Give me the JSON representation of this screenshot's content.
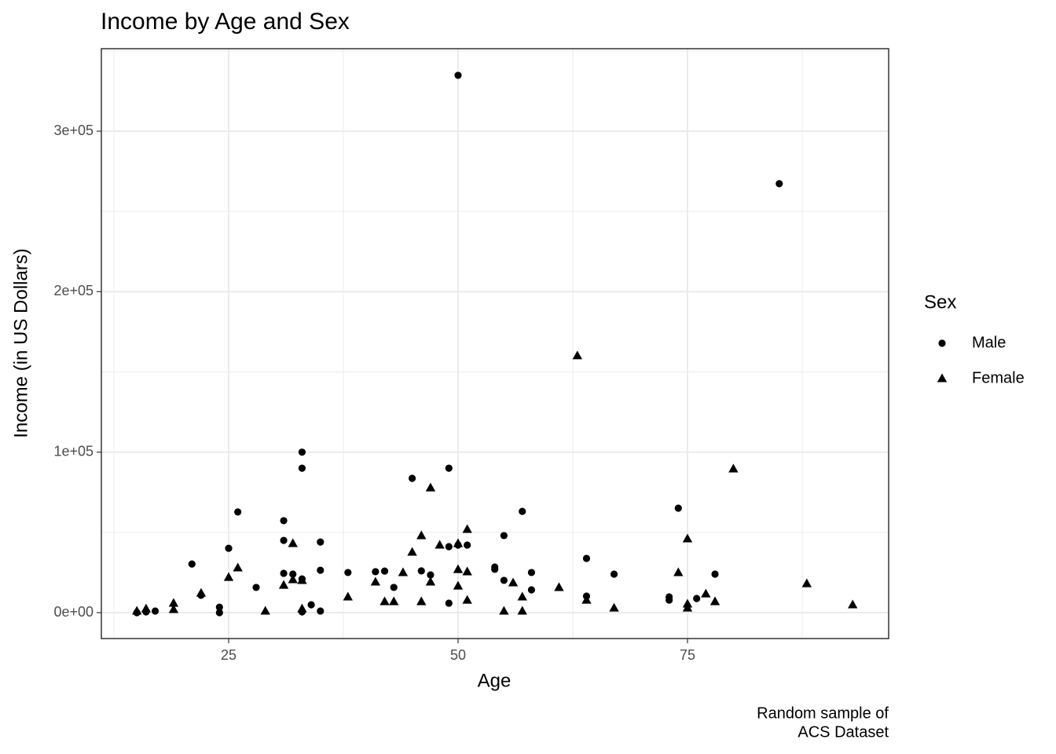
{
  "chart_data": {
    "type": "scatter",
    "title": "Income by Age and Sex",
    "xlabel": "Age",
    "ylabel": "Income (in US Dollars)",
    "caption": [
      "Random sample of",
      "ACS Dataset"
    ],
    "legend_title": "Sex",
    "legend": "right",
    "grid": true,
    "xlim": [
      11.13,
      96.92
    ],
    "ylim": [
      -16150,
      351400
    ],
    "xticks": [
      25,
      50,
      75
    ],
    "yticks": [
      {
        "value": 0,
        "label": "0e+00"
      },
      {
        "value": 100000,
        "label": "1e+05"
      },
      {
        "value": 200000,
        "label": "2e+05"
      },
      {
        "value": 300000,
        "label": "3e+05"
      }
    ],
    "x_minor_grid": [
      12.5,
      37.5,
      62.5,
      87.5
    ],
    "y_minor_grid": [
      50000,
      150000,
      250000,
      350000
    ],
    "series": [
      {
        "name": "Male",
        "color": "#000000",
        "shape": "circle",
        "x": [
          50,
          85,
          33,
          33,
          49,
          45,
          26,
          57,
          74,
          31,
          31,
          35,
          55,
          49,
          50,
          51,
          25,
          21,
          64,
          31,
          32,
          33,
          35,
          38,
          41,
          42,
          46,
          47,
          54,
          54,
          58,
          67,
          78,
          28,
          43,
          55,
          58,
          22,
          64,
          73,
          73,
          76,
          49,
          34,
          24,
          24,
          33,
          35,
          16,
          17,
          15
        ],
        "values": [
          334800,
          267300,
          100000,
          90000,
          90000,
          83700,
          62700,
          63100,
          65100,
          57300,
          45000,
          44000,
          48000,
          41100,
          42100,
          42100,
          40100,
          30300,
          33800,
          24500,
          24000,
          21000,
          26400,
          25000,
          25500,
          25900,
          26000,
          23500,
          28400,
          27000,
          25000,
          24000,
          24000,
          15700,
          15700,
          20100,
          14200,
          10800,
          10300,
          9800,
          7800,
          8800,
          5900,
          4900,
          3400,
          0,
          500,
          1000,
          500,
          1000,
          0
        ]
      },
      {
        "name": "Female",
        "color": "#000000",
        "shape": "triangle",
        "x": [
          63,
          80,
          47,
          51,
          46,
          75,
          32,
          48,
          50,
          45,
          26,
          50,
          51,
          44,
          74,
          25,
          32,
          33,
          31,
          41,
          47,
          56,
          50,
          61,
          88,
          77,
          22,
          38,
          57,
          64,
          42,
          43,
          46,
          51,
          78,
          19,
          75,
          93,
          19,
          16,
          15,
          29,
          33,
          55,
          57,
          67,
          75
        ],
        "values": [
          160100,
          89600,
          77800,
          51900,
          48000,
          46000,
          43100,
          42100,
          43100,
          37700,
          27900,
          26900,
          25500,
          25000,
          25000,
          22000,
          20600,
          20100,
          17100,
          19100,
          19100,
          18600,
          16600,
          15700,
          18100,
          11700,
          12200,
          9800,
          9800,
          7800,
          6900,
          6900,
          6900,
          7800,
          6900,
          5900,
          5400,
          4900,
          2000,
          2400,
          1000,
          1000,
          2400,
          1000,
          1000,
          2900,
          2900
        ]
      }
    ]
  }
}
